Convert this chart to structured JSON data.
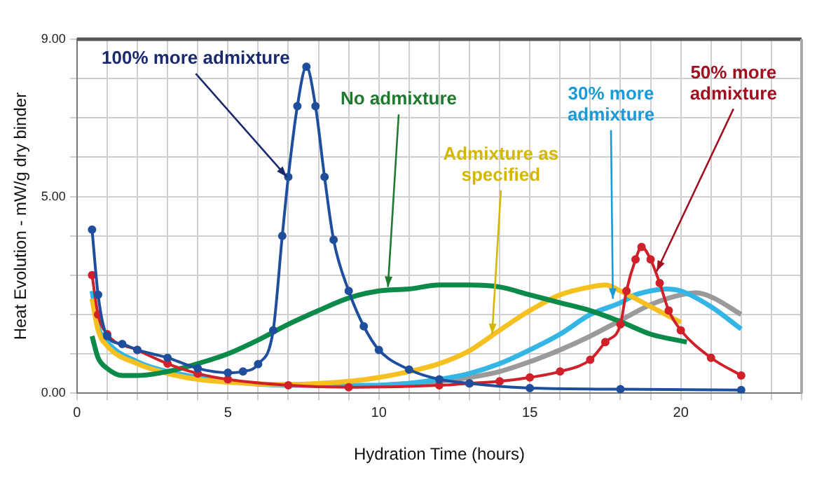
{
  "chart_data": {
    "type": "line",
    "xlabel": "Hydration Time (hours)",
    "ylabel": "Heat Evolution - mW/g dry binder",
    "xlim": [
      0,
      24
    ],
    "xticks": [
      0,
      {
        "value": 1,
        "label": null
      },
      {
        "value": 2,
        "label": null
      },
      {
        "value": 3,
        "label": null
      },
      {
        "value": 4,
        "label": null
      },
      5,
      {
        "value": 6,
        "label": null
      },
      {
        "value": 7,
        "label": null
      },
      {
        "value": 8,
        "label": null
      },
      {
        "value": 9,
        "label": null
      },
      10,
      {
        "value": 11,
        "label": null
      },
      {
        "value": 12,
        "label": null
      },
      {
        "value": 13,
        "label": null
      },
      {
        "value": 14,
        "label": null
      },
      15,
      {
        "value": 16,
        "label": null
      },
      {
        "value": 17,
        "label": null
      },
      {
        "value": 18,
        "label": null
      },
      {
        "value": 19,
        "label": null
      },
      20,
      {
        "value": 21,
        "label": null
      },
      {
        "value": 22,
        "label": null
      },
      {
        "value": 23,
        "label": null
      },
      {
        "value": 24,
        "label": null
      }
    ],
    "ylim": [
      0,
      9
    ],
    "yticks": [
      {
        "value": 0,
        "label": "0.00"
      },
      {
        "value": 1,
        "label": null
      },
      {
        "value": 2,
        "label": null
      },
      {
        "value": 3,
        "label": null
      },
      {
        "value": 4,
        "label": null
      },
      {
        "value": 5,
        "label": "5.00"
      },
      {
        "value": 6,
        "label": null
      },
      {
        "value": 7,
        "label": null
      },
      {
        "value": 8,
        "label": null
      },
      {
        "value": 9,
        "label": "9.00"
      }
    ],
    "grid": true,
    "legend": false,
    "series": [
      {
        "color": "#1f4e9c",
        "marker": "circle",
        "x": [
          0.5,
          0.7,
          1,
          1.5,
          2,
          3,
          4,
          5,
          5.5,
          6,
          6.5,
          6.8,
          7,
          7.3,
          7.6,
          7.9,
          8.2,
          8.5,
          9,
          9.5,
          10,
          11,
          12,
          13,
          15,
          18,
          22
        ],
        "values": [
          4.16,
          2.5,
          1.45,
          1.25,
          1.1,
          0.9,
          0.63,
          0.52,
          0.55,
          0.74,
          1.6,
          4.0,
          5.5,
          7.3,
          8.3,
          7.3,
          5.5,
          3.9,
          2.6,
          1.7,
          1.1,
          0.6,
          0.35,
          0.25,
          0.13,
          0.1,
          0.08
        ]
      },
      {
        "color": "#0b8a4a",
        "marker": "none",
        "x": [
          0.5,
          0.7,
          1,
          1.5,
          2,
          3,
          4,
          5,
          6,
          7,
          8,
          9,
          10,
          11,
          12,
          13,
          14,
          15,
          16,
          17,
          18,
          19,
          20.2
        ],
        "values": [
          1.45,
          0.9,
          0.63,
          0.45,
          0.45,
          0.55,
          0.75,
          1.0,
          1.35,
          1.75,
          2.1,
          2.42,
          2.6,
          2.65,
          2.75,
          2.75,
          2.7,
          2.5,
          2.3,
          2.1,
          1.82,
          1.5,
          1.3
        ]
      },
      {
        "color": "#f5c020",
        "marker": "none",
        "x": [
          0.5,
          0.7,
          1,
          2,
          3,
          4,
          5,
          7,
          9,
          10,
          11,
          12,
          13,
          14,
          15,
          16,
          17,
          17.5,
          18,
          19,
          20
        ],
        "values": [
          2.4,
          1.6,
          1.2,
          0.75,
          0.5,
          0.35,
          0.28,
          0.22,
          0.3,
          0.4,
          0.55,
          0.75,
          1.08,
          1.6,
          2.1,
          2.5,
          2.7,
          2.75,
          2.6,
          2.2,
          1.8
        ]
      },
      {
        "color": "#33b5e5",
        "marker": "none",
        "x": [
          0.5,
          0.7,
          1,
          2,
          3,
          5,
          7,
          10,
          11,
          12,
          13,
          14,
          15,
          16,
          17,
          18,
          18.5,
          19,
          19.5,
          20,
          21,
          22
        ],
        "values": [
          2.6,
          1.7,
          1.3,
          0.8,
          0.55,
          0.3,
          0.2,
          0.2,
          0.25,
          0.35,
          0.5,
          0.75,
          1.1,
          1.5,
          2.0,
          2.3,
          2.5,
          2.6,
          2.65,
          2.6,
          2.2,
          1.63
        ]
      },
      {
        "color": "#d0202a",
        "marker": "circle",
        "x": [
          0.5,
          0.7,
          1,
          2,
          3,
          4,
          5,
          7,
          9,
          12,
          13,
          14,
          15,
          16,
          17,
          17.5,
          18,
          18.2,
          18.5,
          18.7,
          19,
          19.3,
          19.6,
          20,
          21,
          22
        ],
        "values": [
          3.0,
          2.0,
          1.5,
          1.1,
          0.75,
          0.5,
          0.35,
          0.2,
          0.15,
          0.2,
          0.25,
          0.3,
          0.4,
          0.55,
          0.85,
          1.3,
          1.75,
          2.6,
          3.4,
          3.72,
          3.4,
          2.8,
          2.1,
          1.6,
          0.9,
          0.45
        ]
      },
      {
        "color": "#9a9a9a",
        "marker": "none",
        "x": [
          10,
          11,
          12,
          13,
          14,
          15,
          16,
          17,
          18,
          19,
          20,
          20.5,
          21,
          22
        ],
        "values": [
          0.2,
          0.25,
          0.3,
          0.4,
          0.55,
          0.8,
          1.1,
          1.45,
          1.85,
          2.25,
          2.5,
          2.55,
          2.45,
          2.0
        ]
      }
    ],
    "annotations": [
      {
        "text": "100% more admixture",
        "x": 6.95,
        "y": 5.5
      },
      {
        "text": "No admixture",
        "x": 10.3,
        "y": 2.7
      },
      {
        "text": "Admixture as specified",
        "x": 13.75,
        "y": 1.5
      },
      {
        "text": "30% more admixture",
        "x": 17.75,
        "y": 2.4
      },
      {
        "text": "50% more admixture",
        "x": 19.2,
        "y": 3.1
      }
    ]
  }
}
